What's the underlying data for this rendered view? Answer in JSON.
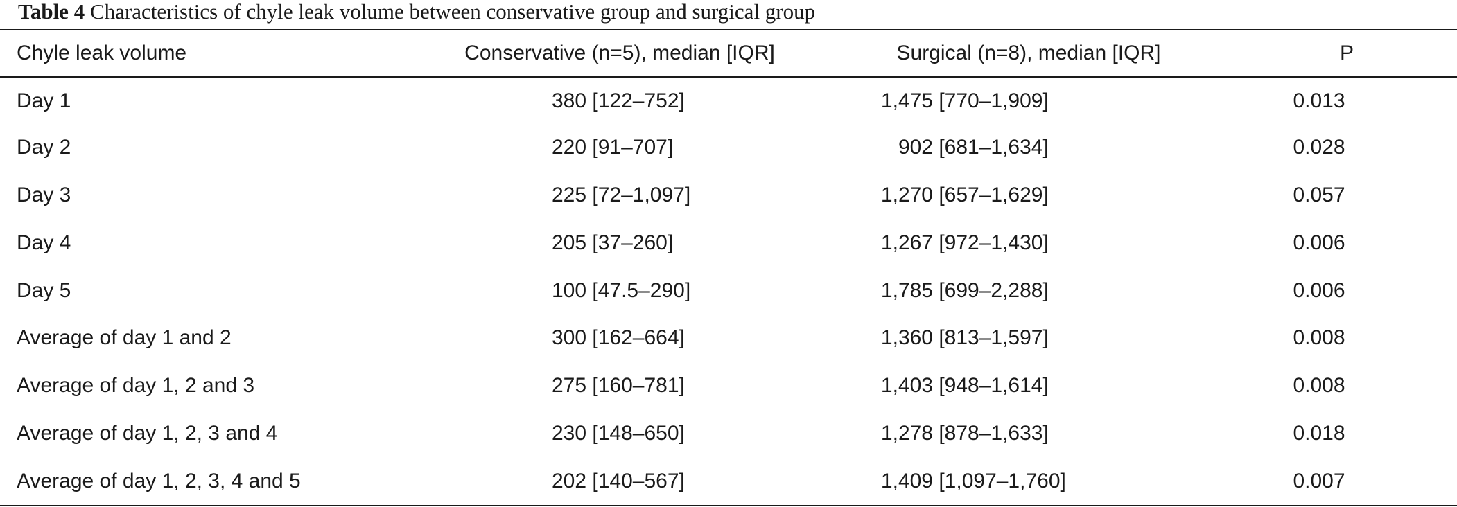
{
  "caption": {
    "label": "Table 4",
    "text": "Characteristics of chyle leak volume between conservative group and surgical group"
  },
  "table": {
    "headers": [
      "Chyle leak volume",
      "Conservative (n=5), median [IQR]",
      "Surgical (n=8), median [IQR]",
      "P"
    ],
    "rows": [
      {
        "label": "Day 1",
        "conservative": "380 [122–752]",
        "surgical_median": "1,475",
        "surgical_iqr": "[770–1,909]",
        "p": "0.013"
      },
      {
        "label": "Day 2",
        "conservative": "220 [91–707]",
        "surgical_median": "902",
        "surgical_iqr": "[681–1,634]",
        "p": "0.028"
      },
      {
        "label": "Day 3",
        "conservative": "225 [72–1,097]",
        "surgical_median": "1,270",
        "surgical_iqr": "[657–1,629]",
        "p": "0.057"
      },
      {
        "label": "Day 4",
        "conservative": "205 [37–260]",
        "surgical_median": "1,267",
        "surgical_iqr": "[972–1,430]",
        "p": "0.006"
      },
      {
        "label": "Day 5",
        "conservative": "100 [47.5–290]",
        "surgical_median": "1,785",
        "surgical_iqr": "[699–2,288]",
        "p": "0.006"
      },
      {
        "label": "Average of day 1 and 2",
        "conservative": "300 [162–664]",
        "surgical_median": "1,360",
        "surgical_iqr": "[813–1,597]",
        "p": "0.008"
      },
      {
        "label": "Average of day 1, 2 and 3",
        "conservative": "275 [160–781]",
        "surgical_median": "1,403",
        "surgical_iqr": "[948–1,614]",
        "p": "0.008"
      },
      {
        "label": "Average of day 1, 2, 3 and 4",
        "conservative": "230 [148–650]",
        "surgical_median": "1,278",
        "surgical_iqr": "[878–1,633]",
        "p": "0.018"
      },
      {
        "label": "Average of day 1, 2, 3, 4 and 5",
        "conservative": "202 [140–567]",
        "surgical_median": "1,409",
        "surgical_iqr": "[1,097–1,760]",
        "p": "0.007"
      }
    ]
  }
}
